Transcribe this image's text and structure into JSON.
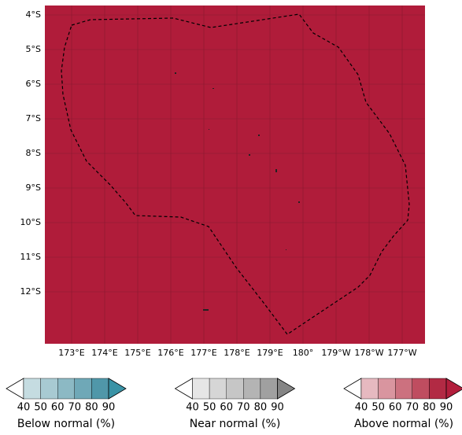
{
  "map": {
    "lat_labels": [
      "4°S",
      "5°S",
      "6°S",
      "7°S",
      "8°S",
      "9°S",
      "10°S",
      "11°S",
      "12°S"
    ],
    "lon_labels": [
      "173°E",
      "174°E",
      "175°E",
      "176°E",
      "177°E",
      "178°E",
      "179°E",
      "180°",
      "179°W",
      "178°W",
      "177°W"
    ]
  },
  "legends": [
    {
      "title": "Below normal (%)",
      "ticks": [
        40,
        50,
        60,
        70,
        80,
        90
      ],
      "colors": [
        "#ffffff",
        "#c5dce1",
        "#a8cad2",
        "#8cb9c4",
        "#6fa8b7",
        "#5097a9",
        "#3a93a6"
      ]
    },
    {
      "title": "Near normal (%)",
      "ticks": [
        40,
        50,
        60,
        70,
        80,
        90
      ],
      "colors": [
        "#ffffff",
        "#e6e6e6",
        "#d6d6d6",
        "#c6c6c6",
        "#b4b4b4",
        "#a0a0a0",
        "#858585"
      ]
    },
    {
      "title": "Above normal (%)",
      "ticks": [
        40,
        50,
        60,
        70,
        80,
        90
      ],
      "colors": [
        "#ffffff",
        "#e6b9c0",
        "#d9959f",
        "#cc717f",
        "#bf4d60",
        "#b22a44",
        "#b21e3c"
      ]
    }
  ]
}
